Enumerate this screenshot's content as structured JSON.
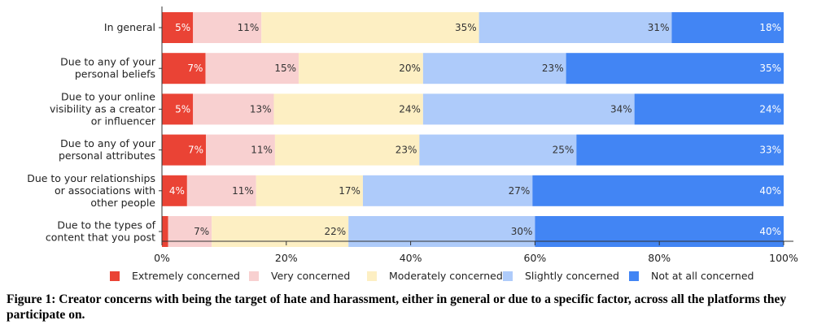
{
  "chart_data": {
    "type": "bar",
    "orientation": "horizontal",
    "stacked": true,
    "categories": [
      [
        "In general"
      ],
      [
        "Due to any of your",
        "personal beliefs"
      ],
      [
        "Due to your online",
        "visibility as a creator",
        "or influencer"
      ],
      [
        "Due to any of your",
        "personal attributes"
      ],
      [
        "Due to your relationships",
        "or associations with",
        "other people"
      ],
      [
        "Due to the types of",
        "content that you post"
      ]
    ],
    "series": [
      {
        "name": "Extremely concerned",
        "color": "#ea4335",
        "values": [
          5,
          7,
          5,
          7,
          4,
          1
        ],
        "labels": [
          "5%",
          "7%",
          "5%",
          "7%",
          "4%",
          ""
        ]
      },
      {
        "name": "Very concerned",
        "color": "#f8d0d0",
        "values": [
          11,
          15,
          13,
          11,
          11,
          7
        ],
        "labels": [
          "11%",
          "15%",
          "13%",
          "11%",
          "11%",
          "7%"
        ]
      },
      {
        "name": "Moderately concerned",
        "color": "#fdefc3",
        "values": [
          35,
          20,
          24,
          23,
          17,
          22
        ],
        "labels": [
          "35%",
          "20%",
          "24%",
          "23%",
          "17%",
          "22%"
        ]
      },
      {
        "name": "Slightly concerned",
        "color": "#aecbfa",
        "values": [
          31,
          23,
          34,
          25,
          27,
          30
        ],
        "labels": [
          "31%",
          "23%",
          "34%",
          "25%",
          "27%",
          "30%"
        ]
      },
      {
        "name": "Not at all concerned",
        "color": "#4285f4",
        "values": [
          18,
          35,
          24,
          33,
          40,
          40
        ],
        "labels": [
          "18%",
          "35%",
          "24%",
          "33%",
          "40%",
          "40%"
        ]
      }
    ],
    "xlim": [
      0,
      100
    ],
    "xticks": [
      "0%",
      "20%",
      "40%",
      "60%",
      "80%",
      "100%"
    ],
    "legend_position": "bottom",
    "label_colors": [
      "#ffffff",
      "#333333",
      "#333333",
      "#333333",
      "#ffffff"
    ]
  },
  "caption": "Figure 1: Creator concerns with being the target of hate and harassment, either in general or due to a specific factor, across all the platforms they participate on."
}
